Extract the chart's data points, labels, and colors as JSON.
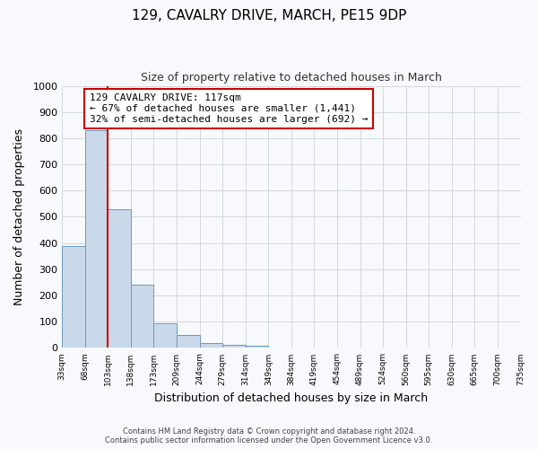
{
  "title": "129, CAVALRY DRIVE, MARCH, PE15 9DP",
  "subtitle": "Size of property relative to detached houses in March",
  "xlabel": "Distribution of detached houses by size in March",
  "ylabel": "Number of detached properties",
  "bin_labels": [
    "33sqm",
    "68sqm",
    "103sqm",
    "138sqm",
    "173sqm",
    "209sqm",
    "244sqm",
    "279sqm",
    "314sqm",
    "349sqm",
    "384sqm",
    "419sqm",
    "454sqm",
    "489sqm",
    "524sqm",
    "560sqm",
    "595sqm",
    "630sqm",
    "665sqm",
    "700sqm",
    "735sqm"
  ],
  "bar_values": [
    390,
    830,
    530,
    240,
    95,
    50,
    20,
    12,
    8,
    0,
    0,
    0,
    0,
    0,
    0,
    0,
    0,
    0,
    0,
    0
  ],
  "bar_color": "#c9d9ea",
  "bar_edge_color": "#6a9abf",
  "property_line_color": "#cc0000",
  "ylim": [
    0,
    1000
  ],
  "yticks": [
    0,
    100,
    200,
    300,
    400,
    500,
    600,
    700,
    800,
    900,
    1000
  ],
  "annotation_title": "129 CAVALRY DRIVE: 117sqm",
  "annotation_line1": "← 67% of detached houses are smaller (1,441)",
  "annotation_line2": "32% of semi-detached houses are larger (692) →",
  "annotation_box_color": "#ffffff",
  "annotation_box_edge_color": "#cc0000",
  "footer_line1": "Contains HM Land Registry data © Crown copyright and database right 2024.",
  "footer_line2": "Contains public sector information licensed under the Open Government Licence v3.0.",
  "grid_color": "#d0d8e0",
  "background_color": "#f7f9fc",
  "title_fontsize": 11,
  "subtitle_fontsize": 9
}
